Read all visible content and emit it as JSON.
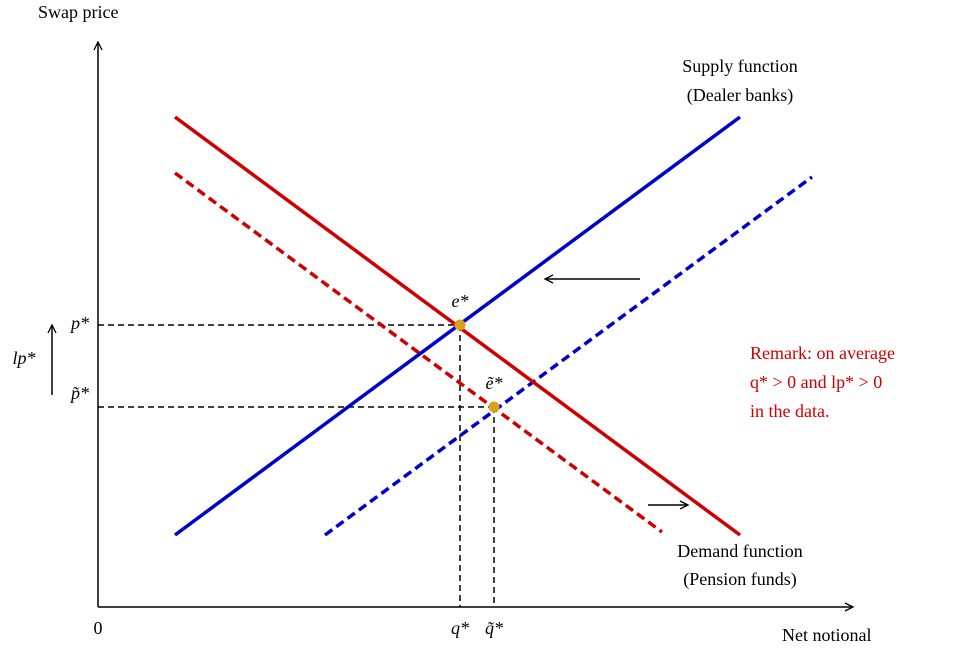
{
  "axes": {
    "y_label": "Swap price",
    "x_label": "Net notional",
    "origin": "0"
  },
  "curves": {
    "supply": [
      "Supply function",
      "(Dealer banks)"
    ],
    "demand": [
      "Demand function",
      "(Pension funds)"
    ]
  },
  "price_labels": {
    "p_star": "p*",
    "p_tilde": "p̃*",
    "lp_star": "lp*"
  },
  "quantity_labels": {
    "q_star": "q*",
    "q_tilde": "q̃*"
  },
  "points": {
    "e_star": "e*",
    "e_tilde": "ẽ*"
  },
  "remark": [
    "Remark: on average",
    "q* > 0 and lp* > 0",
    "in the data."
  ]
}
